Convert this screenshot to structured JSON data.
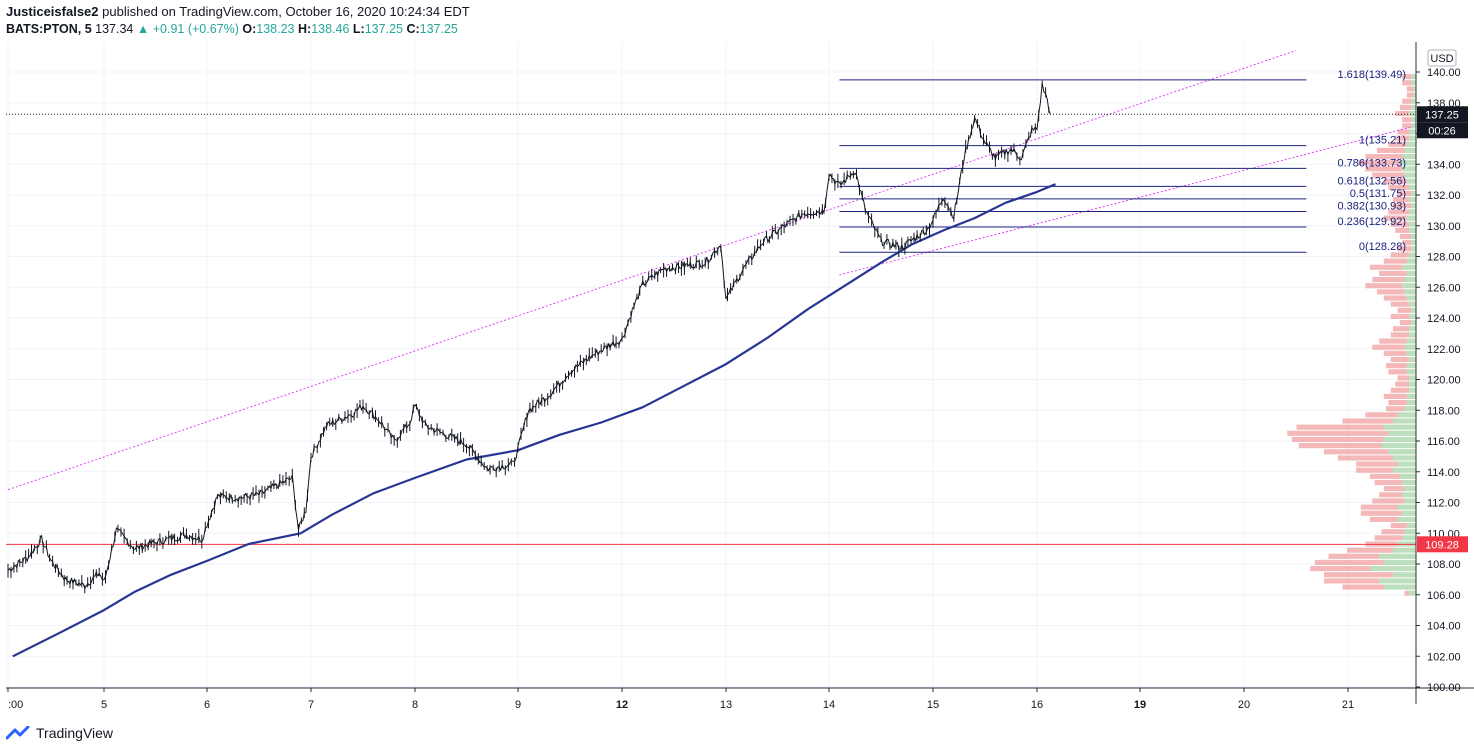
{
  "header": {
    "author": "Justiceisfalse2",
    "published_text": "published on TradingView.com, October 16, 2020 10:24:34 EDT",
    "symbol": "BATS:PTON, 5",
    "last": "137.34",
    "change": "+0.91 (+0.67%)",
    "open_label": "O:",
    "open": "138.23",
    "high_label": "H:",
    "high": "138.46",
    "low_label": "L:",
    "low": "137.25",
    "close_label": "C:",
    "close": "137.25"
  },
  "branding": {
    "name": "TradingView",
    "icon": "tradingview-logo-icon"
  },
  "chart_data": {
    "type": "line",
    "currency": "USD",
    "ylim": [
      100,
      141
    ],
    "y_ticks": [
      100,
      102,
      104,
      106,
      108,
      110,
      112,
      114,
      116,
      118,
      120,
      122,
      124,
      126,
      128,
      130,
      132,
      134,
      136,
      138,
      140
    ],
    "x_ticks": [
      ":00",
      "5",
      "6",
      "7",
      "8",
      "9",
      "12",
      "13",
      "14",
      "15",
      "16",
      "19",
      "20",
      "21"
    ],
    "x_ticks_bold": [
      "12",
      "19"
    ],
    "price_series": {
      "name": "",
      "points": [
        [
          0.0,
          107.6
        ],
        [
          0.2,
          108.4
        ],
        [
          0.35,
          109.6
        ],
        [
          0.45,
          108.2
        ],
        [
          0.6,
          107.0
        ],
        [
          0.8,
          106.6
        ],
        [
          0.95,
          107.4
        ],
        [
          1.0,
          106.8
        ],
        [
          1.12,
          110.2
        ],
        [
          1.3,
          109.0
        ],
        [
          1.5,
          109.4
        ],
        [
          1.8,
          109.9
        ],
        [
          1.95,
          109.6
        ],
        [
          2.0,
          110.6
        ],
        [
          2.1,
          112.4
        ],
        [
          2.3,
          112.3
        ],
        [
          2.5,
          112.5
        ],
        [
          2.7,
          113.2
        ],
        [
          2.82,
          113.6
        ],
        [
          2.88,
          110.2
        ],
        [
          2.95,
          111.5
        ],
        [
          3.0,
          115.0
        ],
        [
          3.15,
          117.0
        ],
        [
          3.4,
          117.8
        ],
        [
          3.5,
          118.3
        ],
        [
          3.65,
          117.4
        ],
        [
          3.8,
          116.0
        ],
        [
          3.95,
          117.2
        ],
        [
          4.0,
          118.3
        ],
        [
          4.1,
          117.0
        ],
        [
          4.3,
          116.4
        ],
        [
          4.5,
          115.8
        ],
        [
          4.7,
          114.2
        ],
        [
          4.95,
          114.5
        ],
        [
          5.0,
          115.5
        ],
        [
          5.1,
          118.0
        ],
        [
          5.3,
          119.0
        ],
        [
          5.5,
          120.5
        ],
        [
          5.7,
          121.5
        ],
        [
          5.9,
          122.3
        ],
        [
          6.0,
          122.6
        ],
        [
          6.1,
          124.5
        ],
        [
          6.2,
          126.2
        ],
        [
          6.4,
          127.2
        ],
        [
          6.6,
          127.4
        ],
        [
          6.8,
          127.6
        ],
        [
          6.95,
          128.8
        ],
        [
          7.0,
          125.2
        ],
        [
          7.15,
          127.0
        ],
        [
          7.35,
          128.9
        ],
        [
          7.55,
          129.9
        ],
        [
          7.75,
          130.8
        ],
        [
          7.95,
          131.0
        ],
        [
          8.0,
          133.4
        ],
        [
          8.1,
          132.6
        ],
        [
          8.25,
          133.6
        ],
        [
          8.35,
          131.0
        ],
        [
          8.5,
          129.0
        ],
        [
          8.7,
          128.6
        ],
        [
          8.95,
          129.8
        ],
        [
          9.0,
          130.4
        ],
        [
          9.1,
          131.9
        ],
        [
          9.2,
          130.6
        ],
        [
          9.3,
          134.5
        ],
        [
          9.4,
          137.0
        ],
        [
          9.5,
          135.4
        ],
        [
          9.6,
          134.4
        ],
        [
          9.75,
          135.0
        ],
        [
          9.85,
          134.4
        ],
        [
          9.95,
          136.2
        ],
        [
          10.0,
          136.3
        ],
        [
          10.05,
          139.1
        ],
        [
          10.1,
          138.2
        ],
        [
          10.13,
          137.25
        ]
      ]
    },
    "moving_average": {
      "points": [
        [
          0.05,
          102.0
        ],
        [
          0.5,
          103.4
        ],
        [
          1.0,
          105.0
        ],
        [
          1.3,
          106.2
        ],
        [
          1.65,
          107.3
        ],
        [
          2.0,
          108.2
        ],
        [
          2.4,
          109.3
        ],
        [
          2.9,
          110.0
        ],
        [
          3.2,
          111.2
        ],
        [
          3.6,
          112.6
        ],
        [
          4.0,
          113.6
        ],
        [
          4.5,
          114.8
        ],
        [
          5.0,
          115.4
        ],
        [
          5.4,
          116.4
        ],
        [
          5.8,
          117.2
        ],
        [
          6.2,
          118.2
        ],
        [
          6.6,
          119.6
        ],
        [
          7.0,
          121.0
        ],
        [
          7.4,
          122.7
        ],
        [
          7.8,
          124.6
        ],
        [
          8.2,
          126.3
        ],
        [
          8.5,
          127.6
        ],
        [
          8.8,
          128.8
        ],
        [
          9.1,
          129.7
        ],
        [
          9.4,
          130.5
        ],
        [
          9.7,
          131.5
        ],
        [
          10.0,
          132.2
        ],
        [
          10.18,
          132.7
        ]
      ]
    },
    "channel_upper": {
      "from": [
        -0.15,
        112.5
      ],
      "to": [
        12.5,
        141.4
      ]
    },
    "channel_lower": {
      "from": [
        8.1,
        126.8
      ],
      "to": [
        13.6,
        136.4
      ]
    },
    "horizontal_line": {
      "value": 109.28,
      "label": "109.28",
      "color": "#f23645"
    },
    "current_price": {
      "value": 137.25,
      "label": "137.25",
      "countdown": "00:26",
      "color": "#131722"
    },
    "fib_retracement": {
      "x_start": 8.1,
      "x_end": 12.6,
      "color": "#1a237e",
      "levels": [
        {
          "label": "1.618(139.49)",
          "value": 139.49
        },
        {
          "label": "1(135.21)",
          "value": 135.21
        },
        {
          "label": "0.786(133.73)",
          "value": 133.73
        },
        {
          "label": "0.618(132.56)",
          "value": 132.56
        },
        {
          "label": "0.5(131.75)",
          "value": 131.75
        },
        {
          "label": "0.382(130.93)",
          "value": 130.93
        },
        {
          "label": "0.236(129.92)",
          "value": 129.92
        },
        {
          "label": "0(128.28)",
          "value": 128.28
        }
      ]
    },
    "volume_profile": {
      "bins_from": 105.9,
      "bin_size": 0.4,
      "up_colors": {
        "up": "#a5d6a7",
        "down": "#ef9a9a"
      },
      "bins": [
        [
          3,
          2
        ],
        [
          14,
          18
        ],
        [
          16,
          24
        ],
        [
          10,
          30
        ],
        [
          20,
          26
        ],
        [
          14,
          30
        ],
        [
          16,
          22
        ],
        [
          10,
          20
        ],
        [
          8,
          14
        ],
        [
          6,
          12
        ],
        [
          5,
          10
        ],
        [
          4,
          7
        ],
        [
          8,
          12
        ],
        [
          6,
          18
        ],
        [
          8,
          16
        ],
        [
          5,
          14
        ],
        [
          6,
          10
        ],
        [
          5,
          9
        ],
        [
          6,
          12
        ],
        [
          7,
          13
        ],
        [
          10,
          16
        ],
        [
          8,
          18
        ],
        [
          10,
          24
        ],
        [
          12,
          28
        ],
        [
          15,
          36
        ],
        [
          14,
          40
        ],
        [
          12,
          44
        ],
        [
          14,
          38
        ],
        [
          10,
          22
        ],
        [
          8,
          14
        ],
        [
          5,
          8
        ],
        [
          4,
          8
        ],
        [
          4,
          10
        ],
        [
          3,
          8
        ],
        [
          3,
          6
        ],
        [
          3,
          5
        ],
        [
          4,
          8
        ],
        [
          4,
          9
        ],
        [
          3,
          8
        ],
        [
          4,
          10
        ],
        [
          5,
          14
        ],
        [
          4,
          12
        ],
        [
          3,
          8
        ],
        [
          3,
          7
        ],
        [
          2,
          5
        ],
        [
          3,
          8
        ],
        [
          2,
          6
        ],
        [
          3,
          8
        ],
        [
          4,
          10
        ],
        [
          5,
          12
        ],
        [
          6,
          16
        ],
        [
          5,
          14
        ],
        [
          4,
          12
        ],
        [
          6,
          14
        ],
        [
          4,
          10
        ],
        [
          3,
          8
        ],
        [
          2,
          6
        ],
        [
          2,
          4
        ],
        [
          2,
          5
        ],
        [
          3,
          6
        ],
        [
          3,
          8
        ],
        [
          4,
          10
        ],
        [
          3,
          9
        ],
        [
          2,
          8
        ],
        [
          3,
          7
        ],
        [
          2,
          6
        ],
        [
          3,
          9
        ],
        [
          4,
          10
        ],
        [
          5,
          14
        ],
        [
          6,
          16
        ],
        [
          7,
          18
        ],
        [
          6,
          16
        ],
        [
          5,
          12
        ],
        [
          4,
          8
        ],
        [
          3,
          6
        ],
        [
          3,
          5
        ],
        [
          2,
          4
        ],
        [
          2,
          4
        ],
        [
          3,
          6
        ],
        [
          2,
          5
        ],
        [
          2,
          4
        ],
        [
          1,
          3
        ],
        [
          1,
          3
        ],
        [
          2,
          4
        ],
        [
          2,
          4
        ]
      ]
    }
  }
}
